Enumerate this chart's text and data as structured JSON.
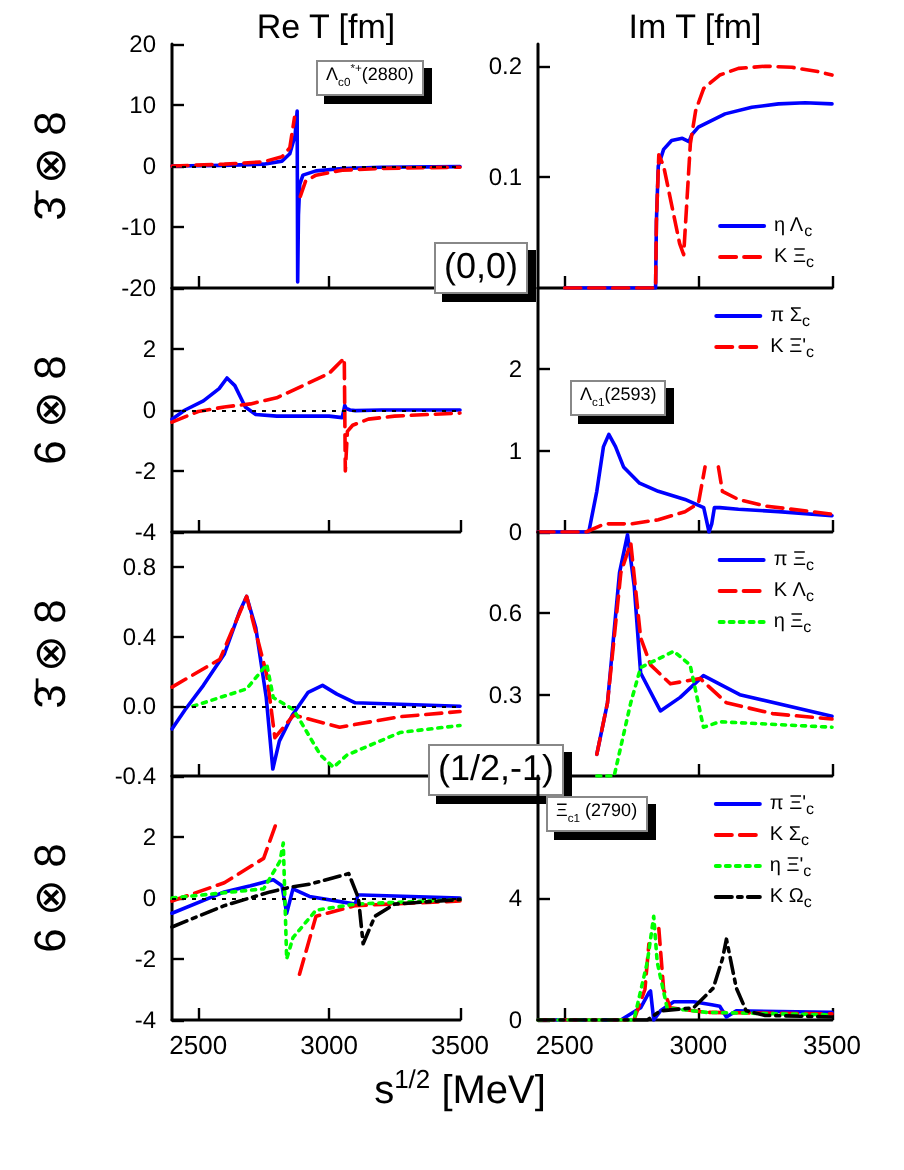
{
  "chart_data": [
    {
      "type": "line",
      "title": "Re T [fm]",
      "ylabel": "3̄ ⊗ 8",
      "xlim": [
        2400,
        3500
      ],
      "xticks": [
        2500,
        3000,
        3500
      ],
      "ylim": [
        -20,
        20
      ],
      "yticks": [
        -20,
        -10,
        0,
        10,
        20
      ],
      "tick_labels": "y",
      "marker": "none",
      "ref_lines": [
        {
          "axis": "y",
          "value": 0,
          "color": "#000000",
          "line_style": "dotted"
        }
      ],
      "annotations": [
        "Λ$_{c0}$$^{*+}$(2880)"
      ],
      "series": [
        {
          "color": "#0000ff",
          "line_style": "solid",
          "x": [
            2400,
            2600,
            2750,
            2820,
            2850,
            2870,
            2878,
            2880,
            2883,
            2888,
            2900,
            2950,
            3050,
            3200,
            3500
          ],
          "values": [
            0,
            0.1,
            0.3,
            0.8,
            2,
            5,
            9,
            -19,
            -8,
            -3,
            -1.5,
            -0.8,
            -0.4,
            -0.2,
            -0.1
          ]
        },
        {
          "color": "#ff0000",
          "line_style": "dashed",
          "x": [
            2400,
            2600,
            2750,
            2820,
            2850,
            2868,
            2874,
            2877,
            2880,
            2884,
            2890,
            2910,
            2950,
            3050,
            3200,
            3500
          ],
          "values": [
            0,
            0.3,
            0.7,
            1.5,
            3,
            8,
            null,
            null,
            null,
            null,
            -5,
            -2.5,
            -1.5,
            -0.7,
            -0.4,
            -0.2
          ]
        }
      ]
    },
    {
      "type": "line",
      "title": "Im T [fm]",
      "xlim": [
        2400,
        3500
      ],
      "xticks": [
        2500,
        3000,
        3500
      ],
      "ylim": [
        0,
        0.22
      ],
      "yticks": [
        0.1,
        0.2
      ],
      "tick_labels": "y",
      "marker": "none",
      "legend": "bottom right",
      "annotations": [
        "(0,0)"
      ],
      "series": [
        {
          "name": "η Λ$_{c}$",
          "color": "#0000ff",
          "line_style": "solid",
          "x": [
            2500,
            2840,
            2843,
            2850,
            2870,
            2900,
            2940,
            2965,
            2975,
            3000,
            3100,
            3200,
            3300,
            3400,
            3500
          ],
          "values": [
            0,
            0,
            0.06,
            0.11,
            0.125,
            0.133,
            0.135,
            0.132,
            0.138,
            0.145,
            0.157,
            0.163,
            0.166,
            0.167,
            0.166
          ]
        },
        {
          "name": "K Ξ$_{c}$",
          "color": "#ff0000",
          "line_style": "dashed",
          "x": [
            2500,
            2840,
            2843,
            2852,
            2870,
            2900,
            2930,
            2945,
            2955,
            2970,
            2990,
            3020,
            3080,
            3150,
            3250,
            3350,
            3450,
            3500
          ],
          "values": [
            0,
            0,
            0.06,
            0.12,
            0.11,
            0.075,
            0.04,
            0.03,
            0.07,
            0.13,
            0.16,
            0.18,
            0.192,
            0.198,
            0.2,
            0.199,
            0.195,
            0.192
          ]
        }
      ]
    },
    {
      "type": "line",
      "ylabel": "6 ⊗ 8",
      "xlim": [
        2400,
        3500
      ],
      "xticks": [
        2500,
        3000,
        3500
      ],
      "ylim": [
        -4,
        4
      ],
      "yticks": [
        -4,
        -2,
        0,
        2
      ],
      "tick_labels": "y",
      "marker": "none",
      "ref_lines": [
        {
          "axis": "y",
          "value": 0,
          "color": "#000000",
          "line_style": "dotted"
        }
      ],
      "series": [
        {
          "color": "#0000ff",
          "line_style": "solid",
          "x": [
            2400,
            2450,
            2520,
            2580,
            2610,
            2640,
            2680,
            2720,
            2800,
            2900,
            3000,
            3050,
            3060,
            3065,
            3080,
            3100,
            3200,
            3500
          ],
          "values": [
            -0.3,
            0,
            0.3,
            0.7,
            1.05,
            0.8,
            0.1,
            -0.15,
            -0.2,
            -0.2,
            -0.2,
            -0.25,
            0.15,
            0.05,
            0,
            -0.02,
            0,
            0
          ]
        },
        {
          "color": "#ff0000",
          "line_style": "dashed",
          "x": [
            2400,
            2500,
            2600,
            2700,
            2800,
            2900,
            3000,
            3058,
            3062,
            3070,
            3090,
            3150,
            3250,
            3500
          ],
          "values": [
            -0.4,
            -0.05,
            0.1,
            0.2,
            0.4,
            0.8,
            1.2,
            1.7,
            -2,
            -0.7,
            -0.5,
            -0.3,
            -0.2,
            -0.1
          ]
        }
      ]
    },
    {
      "type": "line",
      "xlim": [
        2400,
        3500
      ],
      "xticks": [
        2500,
        3000,
        3500
      ],
      "ylim": [
        0,
        3
      ],
      "yticks": [
        0,
        1,
        2
      ],
      "tick_labels": "y",
      "marker": "none",
      "legend": "top right",
      "annotations": [
        "Λ$_{c1}$(2593)"
      ],
      "series": [
        {
          "name": "π Σ$_{c}$",
          "color": "#0000ff",
          "line_style": "solid",
          "x": [
            2400,
            2590,
            2620,
            2645,
            2665,
            2690,
            2720,
            2780,
            2850,
            2950,
            3020,
            3040,
            3050,
            3060,
            3080,
            3150,
            3300,
            3500
          ],
          "values": [
            0,
            0,
            0.5,
            1.05,
            1.2,
            1.05,
            0.8,
            0.6,
            0.5,
            0.4,
            0.3,
            0,
            0.1,
            0.3,
            0.3,
            0.28,
            0.25,
            0.2
          ]
        },
        {
          "name": "K Ξ'$_{c}$",
          "color": "#ff0000",
          "line_style": "dashed",
          "x": [
            2400,
            2580,
            2650,
            2750,
            2850,
            2950,
            3000,
            3025,
            3035,
            3068,
            3075,
            3090,
            3150,
            3250,
            3500
          ],
          "values": [
            0,
            0,
            0.1,
            0.1,
            0.15,
            0.25,
            0.35,
            0.8,
            null,
            null,
            0.8,
            0.5,
            0.4,
            0.32,
            0.22
          ]
        }
      ]
    },
    {
      "type": "line",
      "ylabel": "3̄ ⊗ 8",
      "xlim": [
        2400,
        3500
      ],
      "xticks": [
        2500,
        3000,
        3500
      ],
      "ylim": [
        -0.4,
        1.0
      ],
      "yticks": [
        -0.4,
        {
          "value": 0,
          "label": "0.0"
        },
        0.4,
        0.8
      ],
      "tick_labels": "y",
      "marker": "none",
      "ref_lines": [
        {
          "axis": "y",
          "value": 0,
          "color": "#000000",
          "line_style": "dotted"
        }
      ],
      "series": [
        {
          "color": "#0000ff",
          "line_style": "solid",
          "x": [
            2400,
            2450,
            2520,
            2600,
            2660,
            2685,
            2720,
            2760,
            2785,
            2810,
            2860,
            2920,
            2975,
            3030,
            3100,
            3300,
            3500
          ],
          "values": [
            -0.13,
            -0.02,
            0.12,
            0.3,
            0.55,
            0.63,
            0.45,
            0.05,
            -0.36,
            -0.2,
            -0.05,
            0.08,
            0.12,
            0.07,
            0.02,
            0.01,
            0
          ]
        },
        {
          "color": "#ff0000",
          "line_style": "dashed",
          "x": [
            2400,
            2583,
            2685,
            2762,
            2793,
            2865,
            3040,
            3270,
            3500
          ],
          "values": [
            0.11,
            0.27,
            0.63,
            0.18,
            -0.18,
            -0.05,
            -0.12,
            -0.06,
            -0.03
          ]
        },
        {
          "color": "#00ff00",
          "line_style": "dotted",
          "x": [
            2480,
            2685,
            2762,
            2787,
            2865,
            2967,
            3017,
            3068,
            3272,
            3500
          ],
          "values": [
            0,
            0.1,
            0.24,
            0.05,
            -0.02,
            -0.28,
            -0.35,
            -0.28,
            -0.15,
            -0.11
          ]
        }
      ]
    },
    {
      "type": "line",
      "xlim": [
        2400,
        3500
      ],
      "xticks": [
        2500,
        3000,
        3500
      ],
      "ylim": [
        0,
        0.9
      ],
      "yticks": [
        0.3,
        0.6
      ],
      "tick_labels": "y",
      "marker": "none",
      "legend": "top right",
      "annotations": [
        "(1/2,-1)"
      ],
      "series": [
        {
          "name": "π Ξ$_{c}$",
          "color": "#0000ff",
          "line_style": "solid",
          "x": [
            2620,
            2660,
            2705,
            2735,
            2760,
            2784,
            2858,
            2932,
            3019,
            3155,
            3500
          ],
          "values": [
            0.08,
            0.27,
            0.75,
            0.89,
            0.7,
            0.38,
            0.24,
            0.29,
            0.37,
            0.3,
            0.22
          ]
        },
        {
          "name": "K Λ$_{c}$",
          "color": "#ff0000",
          "line_style": "dashed",
          "x": [
            2620,
            2660,
            2710,
            2747,
            2784,
            2821,
            2895,
            3006,
            3105,
            3278,
            3500
          ],
          "values": [
            0.08,
            0.27,
            0.75,
            0.86,
            0.51,
            0.41,
            0.34,
            0.36,
            0.27,
            0.23,
            0.21
          ]
        },
        {
          "name": "η Ξ$_{c}$",
          "color": "#00ff00",
          "line_style": "dotted",
          "x": [
            2620,
            2685,
            2747,
            2784,
            2908,
            2969,
            3019,
            3080,
            3500
          ],
          "values": [
            0,
            0,
            0.27,
            0.4,
            0.46,
            0.41,
            0.18,
            0.2,
            0.18
          ]
        }
      ]
    },
    {
      "type": "line",
      "ylabel": "6 ⊗ 8",
      "xlabel": "s$^{1/2}$ [MeV]",
      "xlim": [
        2400,
        3500
      ],
      "xticks": [
        2500,
        3000,
        3500
      ],
      "ylim": [
        -4,
        4
      ],
      "yticks": [
        -4,
        -2,
        0,
        2
      ],
      "marker": "none",
      "ref_lines": [
        {
          "axis": "y",
          "value": 0,
          "color": "#000000",
          "line_style": "dotted"
        }
      ],
      "series": [
        {
          "color": "#0000ff",
          "line_style": "solid",
          "x": [
            2400,
            2600,
            2700,
            2787,
            2820,
            2838,
            2862,
            2925,
            3100,
            3110,
            3125,
            3500
          ],
          "values": [
            -0.5,
            0.2,
            0.4,
            0.6,
            0.4,
            -0.5,
            0.3,
            0.05,
            -0.2,
            0.1,
            0.1,
            0
          ]
        },
        {
          "color": "#ff0000",
          "line_style": "dashed",
          "x": [
            2400,
            2600,
            2750,
            2800,
            2818,
            2830,
            2838,
            2862,
            2887,
            2950,
            3100,
            3500
          ],
          "values": [
            -0.1,
            0.5,
            1.3,
            2.5,
            null,
            null,
            null,
            null,
            -2.5,
            -0.6,
            -0.25,
            -0.1
          ]
        },
        {
          "color": "#00ff00",
          "line_style": "dotted",
          "x": [
            2400,
            2750,
            2812,
            2825,
            2838,
            2862,
            2950,
            3100,
            3500
          ],
          "values": [
            0,
            0.3,
            1.2,
            1.8,
            -2,
            -1.3,
            -0.4,
            -0.2,
            -0.05
          ]
        },
        {
          "color": "#000000",
          "line_style": "dashdot",
          "x": [
            2400,
            2600,
            2775,
            2825,
            2850,
            2925,
            3075,
            3112,
            3130,
            3175,
            3250,
            3500
          ],
          "values": [
            -0.95,
            -0.25,
            0.2,
            0.3,
            0.35,
            0.45,
            0.8,
            0,
            -1.5,
            -0.6,
            -0.2,
            -0.05
          ]
        }
      ]
    },
    {
      "type": "line",
      "xlim": [
        2400,
        3500
      ],
      "xticks": [
        2500,
        3000,
        3500
      ],
      "ylim": [
        0,
        8
      ],
      "yticks": [
        0,
        4
      ],
      "marker": "none",
      "legend": "top right",
      "annotations": [
        "Ξ$_{c1}$ (2790)"
      ],
      "series": [
        {
          "name": "π Ξ'$_{c}$",
          "color": "#0000ff",
          "line_style": "solid",
          "x": [
            2400,
            2710,
            2784,
            2815,
            2821,
            2833,
            2858,
            2908,
            2982,
            3050,
            3080,
            3105,
            3142,
            3300,
            3500
          ],
          "values": [
            0,
            0,
            0.4,
            0.9,
            0.95,
            0,
            0.3,
            0.6,
            0.6,
            0.5,
            0.45,
            0.1,
            0.3,
            0.28,
            0.25
          ]
        },
        {
          "name": "K Σ$_{c}$",
          "color": "#ff0000",
          "line_style": "dashed",
          "x": [
            2400,
            2759,
            2800,
            2815,
            2826,
            2846,
            2852,
            2870,
            2895,
            3031,
            3500
          ],
          "values": [
            0,
            0,
            1,
            2.5,
            null,
            null,
            3,
            1,
            0.4,
            0.25,
            0.2
          ]
        },
        {
          "name": "η Ξ'$_{c}$",
          "color": "#00ff00",
          "line_style": "dotted",
          "x": [
            2400,
            2759,
            2809,
            2833,
            2846,
            2883,
            3031,
            3500
          ],
          "values": [
            0,
            0,
            1.9,
            3.4,
            1.9,
            0.4,
            0.25,
            0.17
          ]
        },
        {
          "name": "K Ω$_{c}$",
          "color": "#000000",
          "line_style": "dashdot",
          "x": [
            2400,
            2809,
            2858,
            2982,
            3056,
            3090,
            3105,
            3120,
            3142,
            3179,
            3250,
            3500
          ],
          "values": [
            0,
            0,
            0.3,
            0.4,
            1.05,
            2,
            2.65,
            2,
            1.05,
            0.3,
            0.15,
            0.1
          ]
        }
      ]
    }
  ]
}
